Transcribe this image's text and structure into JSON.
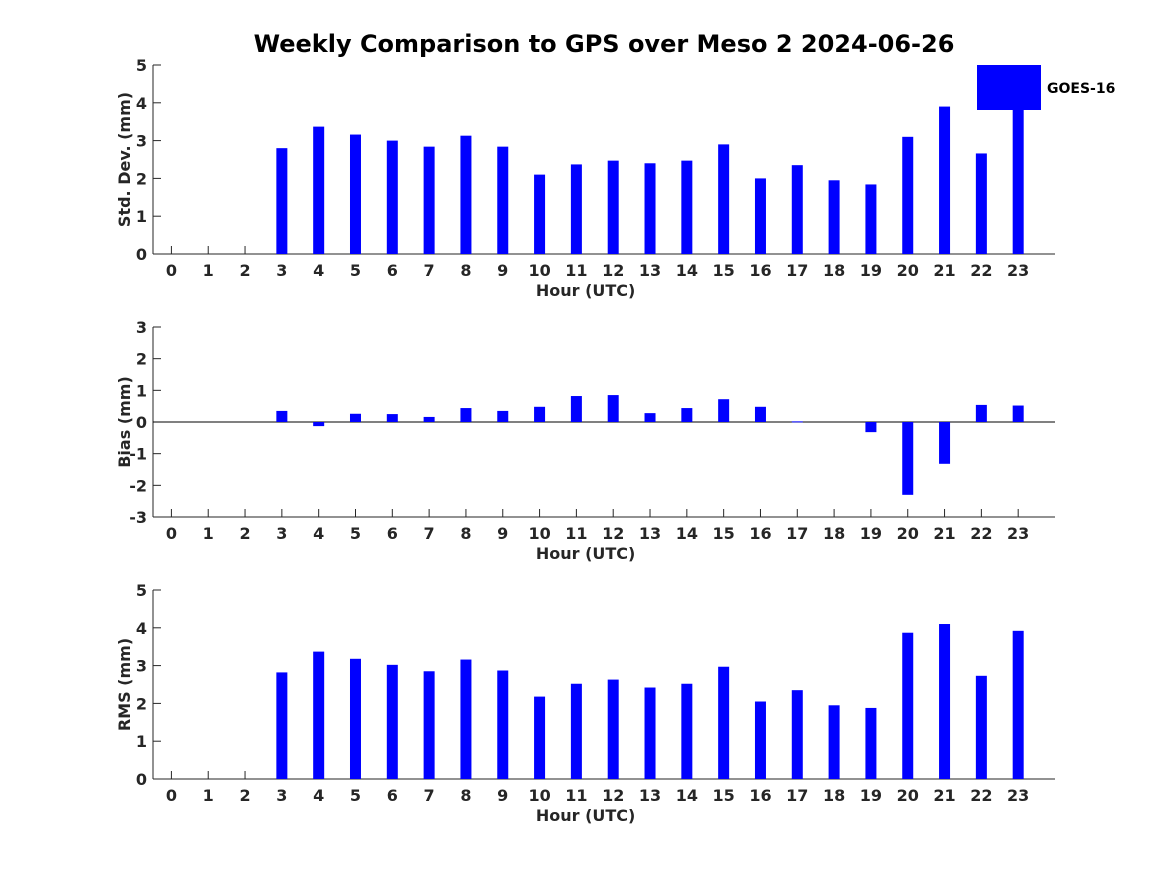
{
  "colors": {
    "bar": "#0000ff",
    "axis": "#262626",
    "background": "#ffffff"
  },
  "legend": {
    "label": "GOES-16",
    "placement": "top-right"
  },
  "chart_data": [
    {
      "type": "bar",
      "title": "Weekly Comparison to GPS over Meso 2 2024-06-26",
      "xlabel": "Hour (UTC)",
      "ylabel": "Std. Dev. (mm)",
      "ylim": [
        0,
        5
      ],
      "yticks": [
        0,
        1,
        2,
        3,
        4,
        5
      ],
      "categories": [
        "0",
        "1",
        "2",
        "3",
        "4",
        "5",
        "6",
        "7",
        "8",
        "9",
        "10",
        "11",
        "12",
        "13",
        "14",
        "15",
        "16",
        "17",
        "18",
        "19",
        "20",
        "21",
        "22",
        "23"
      ],
      "series": [
        {
          "name": "GOES-16",
          "values": [
            0,
            0,
            0,
            2.8,
            3.37,
            3.16,
            3.0,
            2.84,
            3.13,
            2.84,
            2.1,
            2.37,
            2.47,
            2.4,
            2.47,
            2.9,
            2.0,
            2.35,
            1.95,
            1.84,
            3.1,
            3.9,
            2.66,
            3.9
          ]
        }
      ]
    },
    {
      "type": "bar",
      "title": "",
      "xlabel": "Hour (UTC)",
      "ylabel": "Bias (mm)",
      "ylim": [
        -3,
        3
      ],
      "yticks": [
        -3,
        -2,
        -1,
        0,
        1,
        2,
        3
      ],
      "categories": [
        "0",
        "1",
        "2",
        "3",
        "4",
        "5",
        "6",
        "7",
        "8",
        "9",
        "10",
        "11",
        "12",
        "13",
        "14",
        "15",
        "16",
        "17",
        "18",
        "19",
        "20",
        "21",
        "22",
        "23"
      ],
      "series": [
        {
          "name": "GOES-16",
          "values": [
            0,
            0,
            0,
            0.35,
            -0.13,
            0.26,
            0.25,
            0.16,
            0.44,
            0.35,
            0.48,
            0.82,
            0.85,
            0.28,
            0.44,
            0.72,
            0.48,
            0.02,
            0.0,
            -0.32,
            -2.3,
            -1.32,
            0.54,
            0.52
          ]
        }
      ]
    },
    {
      "type": "bar",
      "title": "",
      "xlabel": "Hour (UTC)",
      "ylabel": "RMS (mm)",
      "ylim": [
        0,
        5
      ],
      "yticks": [
        0,
        1,
        2,
        3,
        4,
        5
      ],
      "categories": [
        "0",
        "1",
        "2",
        "3",
        "4",
        "5",
        "6",
        "7",
        "8",
        "9",
        "10",
        "11",
        "12",
        "13",
        "14",
        "15",
        "16",
        "17",
        "18",
        "19",
        "20",
        "21",
        "22",
        "23"
      ],
      "series": [
        {
          "name": "GOES-16",
          "values": [
            0,
            0,
            0,
            2.82,
            3.37,
            3.18,
            3.02,
            2.85,
            3.16,
            2.87,
            2.18,
            2.52,
            2.63,
            2.42,
            2.52,
            2.97,
            2.05,
            2.35,
            1.95,
            1.88,
            3.87,
            4.1,
            2.73,
            3.92
          ]
        }
      ]
    }
  ]
}
